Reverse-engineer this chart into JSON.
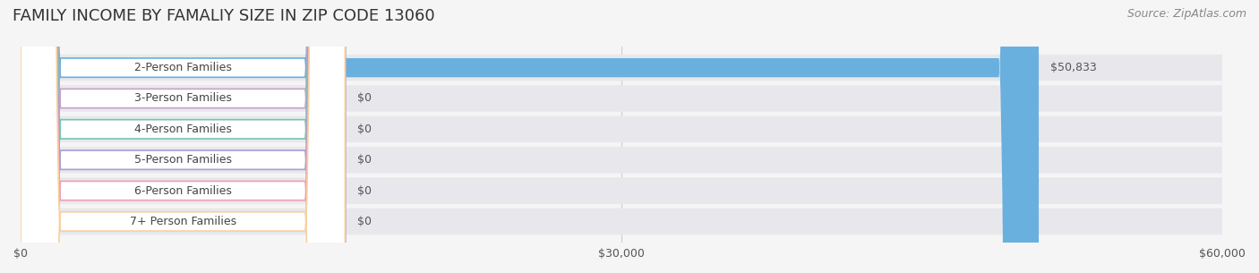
{
  "title": "FAMILY INCOME BY FAMALIY SIZE IN ZIP CODE 13060",
  "source": "Source: ZipAtlas.com",
  "categories": [
    "2-Person Families",
    "3-Person Families",
    "4-Person Families",
    "5-Person Families",
    "6-Person Families",
    "7+ Person Families"
  ],
  "values": [
    50833,
    0,
    0,
    0,
    0,
    0
  ],
  "bar_colors": [
    "#6ab0de",
    "#c9a0c8",
    "#70c8b0",
    "#a8a0d8",
    "#f0a0b0",
    "#f8d0a0"
  ],
  "label_colors": [
    "#6ab0de",
    "#c9a0c8",
    "#70c8b0",
    "#a8a0d8",
    "#f0a0b0",
    "#f8d0a0"
  ],
  "xlim": [
    0,
    60000
  ],
  "xticks": [
    0,
    30000,
    60000
  ],
  "xticklabels": [
    "$0",
    "$30,000",
    "$60,000"
  ],
  "value_labels": [
    "$50,833",
    "$0",
    "$0",
    "$0",
    "$0",
    "$0"
  ],
  "bg_color": "#f5f5f5",
  "bar_bg_color": "#e8e8ec",
  "title_fontsize": 13,
  "label_fontsize": 9,
  "value_fontsize": 9,
  "source_fontsize": 9
}
